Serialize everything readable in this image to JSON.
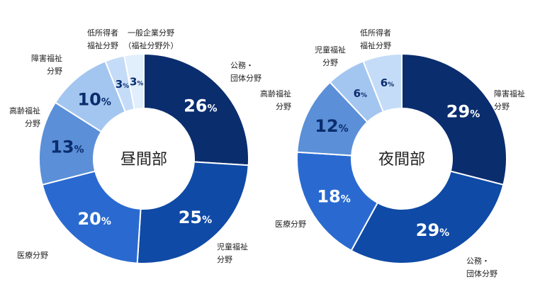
{
  "chart_data": [
    {
      "type": "pie",
      "title": "昼間部",
      "unit": "%",
      "slices": [
        {
          "label_lines": [
            "公務・",
            "団体分野"
          ],
          "value": 26,
          "color": "#0a2d6e"
        },
        {
          "label_lines": [
            "児童福祉",
            "分野"
          ],
          "value": 25,
          "color": "#0f4aa6"
        },
        {
          "label_lines": [
            "医療分野"
          ],
          "value": 20,
          "color": "#2a6ad0"
        },
        {
          "label_lines": [
            "高齢福祉",
            "分野"
          ],
          "value": 13,
          "color": "#5b8fd8"
        },
        {
          "label_lines": [
            "障害福祉",
            "分野"
          ],
          "value": 10,
          "color": "#a3c6f0"
        },
        {
          "label_lines": [
            "低所得者",
            "福祉分野"
          ],
          "value": 3,
          "color": "#c4dcf7"
        },
        {
          "label_lines": [
            "一般企業分野",
            "（福祉分野外）"
          ],
          "value": 3,
          "color": "#e1eefc"
        }
      ]
    },
    {
      "type": "pie",
      "title": "夜間部",
      "unit": "%",
      "slices": [
        {
          "label_lines": [
            "障害福祉",
            "分野"
          ],
          "value": 29,
          "color": "#0a2d6e"
        },
        {
          "label_lines": [
            "公務・",
            "団体分野"
          ],
          "value": 29,
          "color": "#0f4aa6"
        },
        {
          "label_lines": [
            "医療分野"
          ],
          "value": 18,
          "color": "#2a6ad0"
        },
        {
          "label_lines": [
            "高齢福祉",
            "分野"
          ],
          "value": 12,
          "color": "#5b8fd8"
        },
        {
          "label_lines": [
            "児童福祉",
            "分野"
          ],
          "value": 6,
          "color": "#a3c6f0"
        },
        {
          "label_lines": [
            "低所得者",
            "福祉分野"
          ],
          "value": 6,
          "color": "#c4dcf7"
        }
      ]
    }
  ]
}
